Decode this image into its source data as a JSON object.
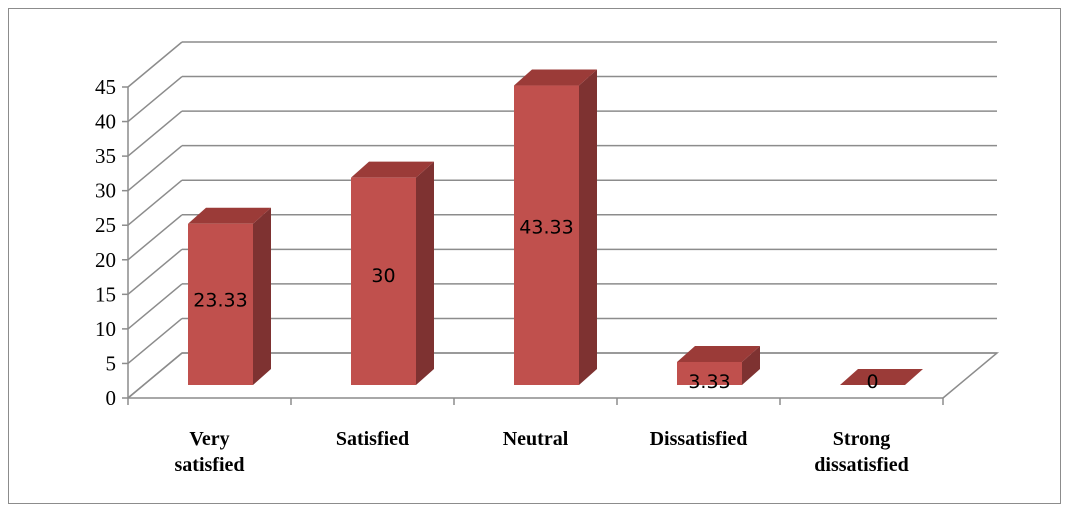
{
  "chart_data": {
    "type": "bar",
    "style": "3d-column",
    "categories": [
      "Very satisfied",
      "Satisfied",
      "Neutral",
      "Dissatisfied",
      "Strong dissatisfied"
    ],
    "category_lines": [
      [
        "Very",
        "satisfied"
      ],
      [
        "Satisfied"
      ],
      [
        "Neutral"
      ],
      [
        "Dissatisfied"
      ],
      [
        "Strong",
        "dissatisfied"
      ]
    ],
    "values": [
      23.33,
      30,
      43.33,
      3.33,
      0
    ],
    "data_labels": [
      "23.33",
      "30",
      "43.33",
      "3.33",
      "0"
    ],
    "ylim": [
      0,
      45
    ],
    "yticks": [
      0,
      5,
      10,
      15,
      20,
      25,
      30,
      35,
      40,
      45
    ],
    "grid": true,
    "legend": "none",
    "colors": {
      "bar_front": "#C0504D",
      "bar_side": "#7E3231",
      "bar_top": "#9B3B38",
      "grid": "#8c8c8c"
    }
  }
}
